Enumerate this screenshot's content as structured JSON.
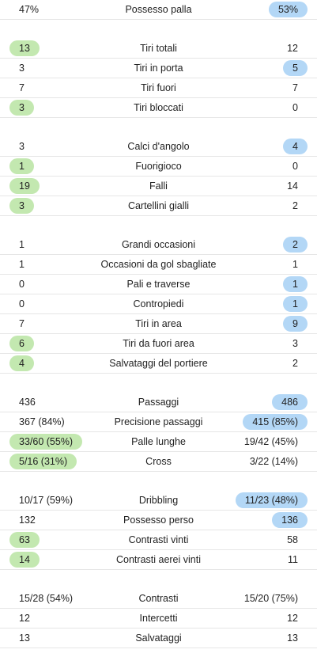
{
  "colors": {
    "home_highlight": "#c3e8b0",
    "away_highlight": "#b3d7f6",
    "divider": "#e6e6e6",
    "text": "#222222"
  },
  "groups": [
    {
      "rows": [
        {
          "label": "Possesso palla",
          "home": "47%",
          "away": "53%",
          "highlight": "away"
        }
      ]
    },
    {
      "rows": [
        {
          "label": "Tiri totali",
          "home": "13",
          "away": "12",
          "highlight": "home"
        },
        {
          "label": "Tiri in porta",
          "home": "3",
          "away": "5",
          "highlight": "away"
        },
        {
          "label": "Tiri fuori",
          "home": "7",
          "away": "7",
          "highlight": "none"
        },
        {
          "label": "Tiri bloccati",
          "home": "3",
          "away": "0",
          "highlight": "home"
        }
      ]
    },
    {
      "rows": [
        {
          "label": "Calci d'angolo",
          "home": "3",
          "away": "4",
          "highlight": "away"
        },
        {
          "label": "Fuorigioco",
          "home": "1",
          "away": "0",
          "highlight": "home"
        },
        {
          "label": "Falli",
          "home": "19",
          "away": "14",
          "highlight": "home"
        },
        {
          "label": "Cartellini gialli",
          "home": "3",
          "away": "2",
          "highlight": "home"
        }
      ]
    },
    {
      "rows": [
        {
          "label": "Grandi occasioni",
          "home": "1",
          "away": "2",
          "highlight": "away"
        },
        {
          "label": "Occasioni da gol sbagliate",
          "home": "1",
          "away": "1",
          "highlight": "none"
        },
        {
          "label": "Pali e traverse",
          "home": "0",
          "away": "1",
          "highlight": "away"
        },
        {
          "label": "Contropiedi",
          "home": "0",
          "away": "1",
          "highlight": "away"
        },
        {
          "label": "Tiri in area",
          "home": "7",
          "away": "9",
          "highlight": "away"
        },
        {
          "label": "Tiri da fuori area",
          "home": "6",
          "away": "3",
          "highlight": "home"
        },
        {
          "label": "Salvataggi del portiere",
          "home": "4",
          "away": "2",
          "highlight": "home"
        }
      ]
    },
    {
      "rows": [
        {
          "label": "Passaggi",
          "home": "436",
          "away": "486",
          "highlight": "away"
        },
        {
          "label": "Precisione passaggi",
          "home": "367 (84%)",
          "away": "415 (85%)",
          "highlight": "away"
        },
        {
          "label": "Palle lunghe",
          "home": "33/60 (55%)",
          "away": "19/42 (45%)",
          "highlight": "home"
        },
        {
          "label": "Cross",
          "home": "5/16 (31%)",
          "away": "3/22 (14%)",
          "highlight": "home"
        }
      ]
    },
    {
      "rows": [
        {
          "label": "Dribbling",
          "home": "10/17 (59%)",
          "away": "11/23 (48%)",
          "highlight": "away"
        },
        {
          "label": "Possesso perso",
          "home": "132",
          "away": "136",
          "highlight": "away"
        },
        {
          "label": "Contrasti vinti",
          "home": "63",
          "away": "58",
          "highlight": "home"
        },
        {
          "label": "Contrasti aerei vinti",
          "home": "14",
          "away": "11",
          "highlight": "home"
        }
      ]
    },
    {
      "rows": [
        {
          "label": "Contrasti",
          "home": "15/28 (54%)",
          "away": "15/20 (75%)",
          "highlight": "none"
        },
        {
          "label": "Intercetti",
          "home": "12",
          "away": "12",
          "highlight": "none"
        },
        {
          "label": "Salvataggi",
          "home": "13",
          "away": "13",
          "highlight": "none"
        }
      ]
    }
  ]
}
